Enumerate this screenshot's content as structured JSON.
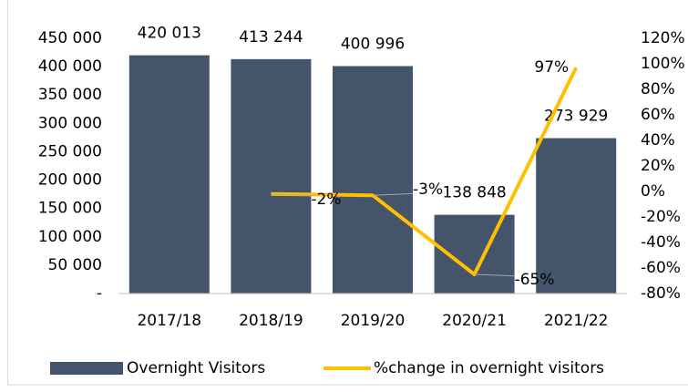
{
  "chart_data": {
    "type": "bar_line",
    "categories": [
      "2017/18",
      "2018/19",
      "2019/20",
      "2020/21",
      "2021/22"
    ],
    "series": [
      {
        "name": "Overnight Visitors",
        "type": "bar",
        "color": "#44546a",
        "values": [
          420013,
          413244,
          400996,
          138848,
          273929
        ],
        "value_labels": [
          "420 013",
          "413 244",
          "400 996",
          "138 848",
          "273 929"
        ]
      },
      {
        "name": "%change in overnight visitors",
        "type": "line",
        "axis": "y2",
        "color": "#ffc000",
        "values": [
          null,
          -2,
          -3,
          -65,
          97
        ],
        "value_labels": [
          null,
          "-2%",
          "-3%",
          "-65%",
          "97%"
        ]
      }
    ],
    "ylim": [
      0,
      450000
    ],
    "yticks": [
      {
        "value": 0,
        "label": "-"
      },
      {
        "value": 50000,
        "label": "50 000"
      },
      {
        "value": 100000,
        "label": "100 000"
      },
      {
        "value": 150000,
        "label": "150 000"
      },
      {
        "value": 200000,
        "label": "200 000"
      },
      {
        "value": 250000,
        "label": "250 000"
      },
      {
        "value": 300000,
        "label": "300 000"
      },
      {
        "value": 350000,
        "label": "350 000"
      },
      {
        "value": 400000,
        "label": "400 000"
      },
      {
        "value": 450000,
        "label": "450 000"
      }
    ],
    "y2lim": [
      -80,
      120
    ],
    "y2ticks": [
      {
        "value": -80,
        "label": "-80%"
      },
      {
        "value": -60,
        "label": "-60%"
      },
      {
        "value": -40,
        "label": "-40%"
      },
      {
        "value": -20,
        "label": "-20%"
      },
      {
        "value": 0,
        "label": "0%"
      },
      {
        "value": 20,
        "label": "20%"
      },
      {
        "value": 40,
        "label": "40%"
      },
      {
        "value": 60,
        "label": "60%"
      },
      {
        "value": 80,
        "label": "80%"
      },
      {
        "value": 100,
        "label": "100%"
      },
      {
        "value": 120,
        "label": "120%"
      }
    ],
    "grid": false,
    "legend": "bottom"
  }
}
